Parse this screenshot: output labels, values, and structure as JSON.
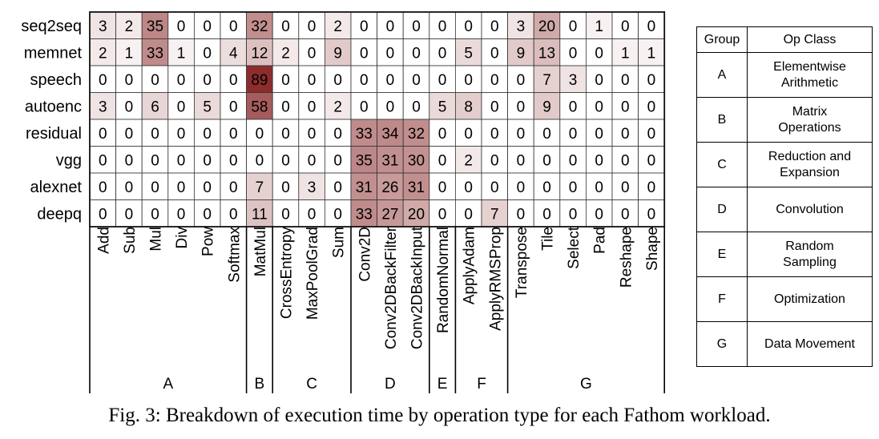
{
  "chart_data": {
    "type": "heatmap",
    "rows": [
      "seq2seq",
      "memnet",
      "speech",
      "autoenc",
      "residual",
      "vgg",
      "alexnet",
      "deepq"
    ],
    "columns": [
      "Add",
      "Sub",
      "Mul",
      "Div",
      "Pow",
      "Softmax",
      "MatMul",
      "CrossEntropy",
      "MaxPoolGrad",
      "Sum",
      "Conv2D",
      "Conv2DBackFilter",
      "Conv2DBackInput",
      "RandomNormal",
      "ApplyAdam",
      "ApplyRMSProp",
      "Transpose",
      "Tile",
      "Select",
      "Pad",
      "Reshape",
      "Shape"
    ],
    "values": [
      [
        3,
        2,
        35,
        0,
        0,
        0,
        32,
        0,
        0,
        2,
        0,
        0,
        0,
        0,
        0,
        0,
        3,
        20,
        0,
        1,
        0,
        0
      ],
      [
        2,
        1,
        33,
        1,
        0,
        4,
        12,
        2,
        0,
        9,
        0,
        0,
        0,
        0,
        5,
        0,
        9,
        13,
        0,
        0,
        1,
        1
      ],
      [
        0,
        0,
        0,
        0,
        0,
        0,
        89,
        0,
        0,
        0,
        0,
        0,
        0,
        0,
        0,
        0,
        0,
        7,
        3,
        0,
        0,
        0
      ],
      [
        3,
        0,
        6,
        0,
        5,
        0,
        58,
        0,
        0,
        2,
        0,
        0,
        0,
        5,
        8,
        0,
        0,
        9,
        0,
        0,
        0,
        0
      ],
      [
        0,
        0,
        0,
        0,
        0,
        0,
        0,
        0,
        0,
        0,
        33,
        34,
        32,
        0,
        0,
        0,
        0,
        0,
        0,
        0,
        0,
        0
      ],
      [
        0,
        0,
        0,
        0,
        0,
        0,
        0,
        0,
        0,
        0,
        35,
        31,
        30,
        0,
        2,
        0,
        0,
        0,
        0,
        0,
        0,
        0
      ],
      [
        0,
        0,
        0,
        0,
        0,
        0,
        7,
        0,
        3,
        0,
        31,
        26,
        31,
        0,
        0,
        0,
        0,
        0,
        0,
        0,
        0,
        0
      ],
      [
        0,
        0,
        0,
        0,
        0,
        0,
        11,
        0,
        0,
        0,
        33,
        27,
        20,
        0,
        0,
        7,
        0,
        0,
        0,
        0,
        0,
        0
      ]
    ],
    "groups": [
      {
        "label": "A",
        "start": 0,
        "end": 5
      },
      {
        "label": "B",
        "start": 6,
        "end": 6
      },
      {
        "label": "C",
        "start": 7,
        "end": 9
      },
      {
        "label": "D",
        "start": 10,
        "end": 12
      },
      {
        "label": "E",
        "start": 13,
        "end": 13
      },
      {
        "label": "F",
        "start": 14,
        "end": 15
      },
      {
        "label": "G",
        "start": 16,
        "end": 21
      }
    ],
    "color_low": "#ffffff",
    "color_high": "#8b2b2b"
  },
  "legend": {
    "header_group": "Group",
    "header_opclass": "Op Class",
    "rows": [
      {
        "group": "A",
        "line1": "Elementwise",
        "line2": "Arithmetic"
      },
      {
        "group": "B",
        "line1": "Matrix",
        "line2": "Operations"
      },
      {
        "group": "C",
        "line1": "Reduction and",
        "line2": "Expansion"
      },
      {
        "group": "D",
        "line1": "Convolution",
        "line2": ""
      },
      {
        "group": "E",
        "line1": "Random",
        "line2": "Sampling"
      },
      {
        "group": "F",
        "line1": "Optimization",
        "line2": ""
      },
      {
        "group": "G",
        "line1": "Data Movement",
        "line2": ""
      }
    ]
  },
  "caption": "Fig. 3: Breakdown of execution time by operation type for each Fathom workload."
}
